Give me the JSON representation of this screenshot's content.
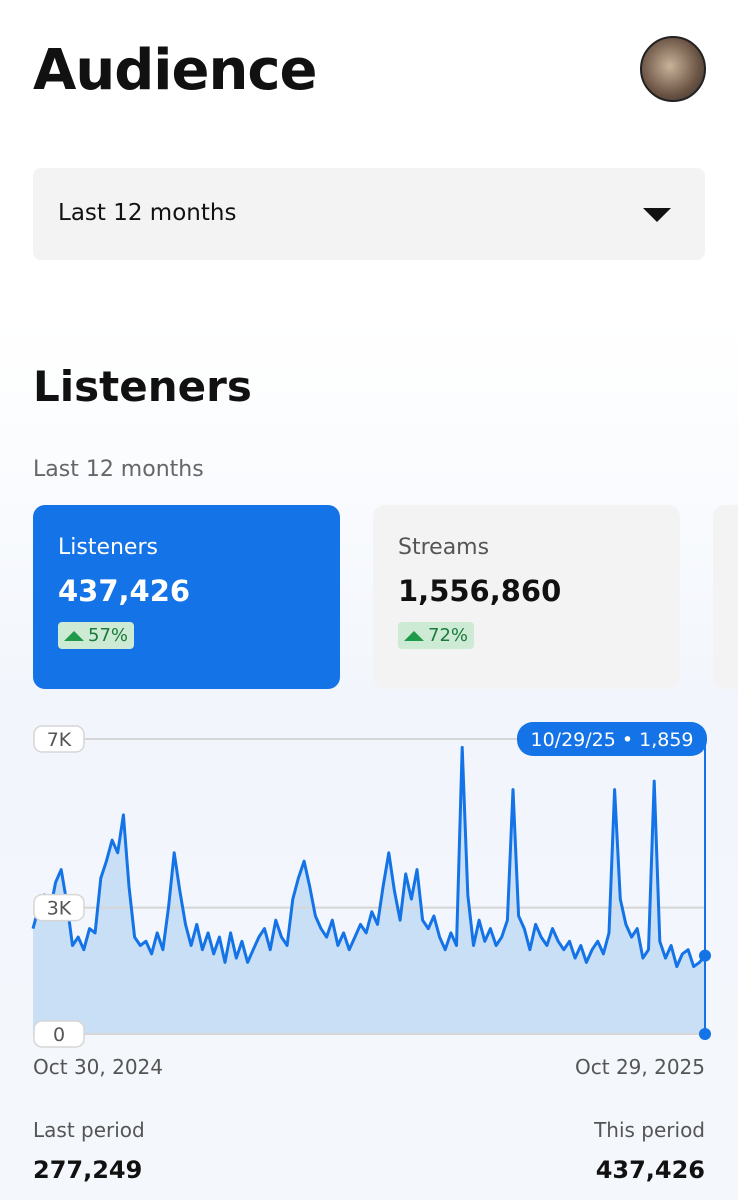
{
  "header": {
    "title": "Audience"
  },
  "filter": {
    "selected": "Last 12 months"
  },
  "section": {
    "title": "Listeners",
    "period": "Last 12 months"
  },
  "cards": [
    {
      "label": "Listeners",
      "value": "437,426",
      "change": "57%",
      "selected": true
    },
    {
      "label": "Streams",
      "value": "1,556,860",
      "change": "72%",
      "selected": false
    }
  ],
  "chart_data": {
    "type": "line",
    "color": "#1473e6",
    "area_color": "#c9dff6",
    "ylim": [
      0,
      7000
    ],
    "yticks": [
      0,
      {
        "value": 3000,
        "label": "3K"
      },
      {
        "value": 7000,
        "label": "7K"
      }
    ],
    "grid": true,
    "x_labels": [
      "Oct 30, 2024",
      "Oct 29, 2025"
    ],
    "tooltip": "10/29/25 • 1,859",
    "values": [
      2500,
      3000,
      3300,
      2900,
      3600,
      3900,
      3100,
      2100,
      2300,
      2000,
      2500,
      2400,
      3700,
      4100,
      4600,
      4300,
      5200,
      3500,
      2300,
      2100,
      2200,
      1900,
      2400,
      2000,
      3000,
      4300,
      3400,
      2600,
      2100,
      2600,
      2000,
      2400,
      1900,
      2300,
      1700,
      2400,
      1800,
      2200,
      1700,
      2000,
      2300,
      2500,
      2000,
      2700,
      2300,
      2100,
      3200,
      3700,
      4100,
      3500,
      2800,
      2500,
      2300,
      2700,
      2100,
      2400,
      2000,
      2300,
      2600,
      2400,
      2900,
      2600,
      3500,
      4300,
      3400,
      2700,
      3800,
      3200,
      3900,
      2700,
      2500,
      2800,
      2300,
      2000,
      2400,
      2100,
      6800,
      3300,
      2100,
      2700,
      2200,
      2500,
      2100,
      2300,
      2700,
      5800,
      2800,
      2500,
      2000,
      2600,
      2300,
      2100,
      2500,
      2200,
      2000,
      2200,
      1800,
      2100,
      1700,
      2000,
      2200,
      1900,
      2400,
      5800,
      3200,
      2600,
      2300,
      2500,
      1800,
      2000,
      6000,
      2200,
      1800,
      2100,
      1600,
      1900,
      2000,
      1600,
      1700,
      1859
    ]
  },
  "summary": {
    "last_period_label": "Last period",
    "last_period_value": "277,249",
    "this_period_label": "This period",
    "this_period_value": "437,426"
  }
}
